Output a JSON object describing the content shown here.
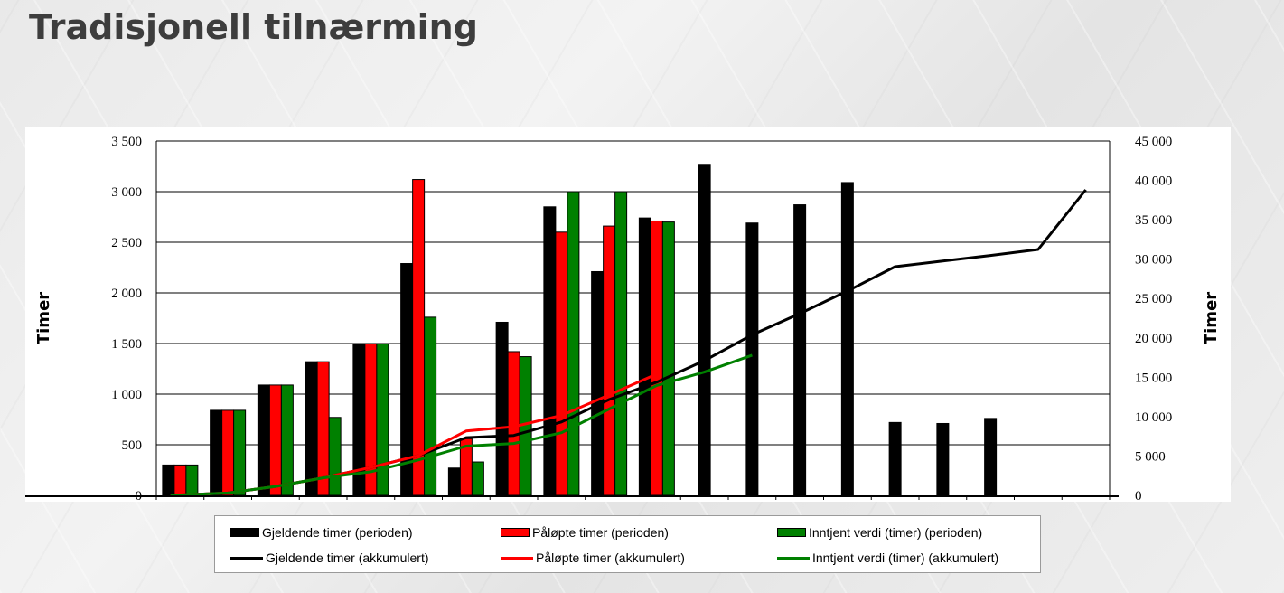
{
  "slide": {
    "title": "Tradisjonell tilnærming"
  },
  "colors": {
    "gjeldende": "#000000",
    "palopte": "#ff0000",
    "inntjent": "#008000",
    "gridline": "#000000"
  },
  "chart_data": {
    "type": "bar",
    "title": "",
    "ylabel": "Timer",
    "y2label": "Timer",
    "ylim": [
      0,
      3500
    ],
    "y2lim": [
      0,
      45000
    ],
    "y_ticks": [
      0,
      500,
      1000,
      1500,
      2000,
      2500,
      3000,
      3500
    ],
    "y_tick_labels": [
      "0",
      "500",
      "1 000",
      "1 500",
      "2 000",
      "2 500",
      "3 000",
      "3 500"
    ],
    "y2_ticks": [
      0,
      5000,
      10000,
      15000,
      20000,
      25000,
      30000,
      35000,
      40000,
      45000
    ],
    "y2_tick_labels": [
      "0",
      "5 000",
      "10 000",
      "15 000",
      "20 000",
      "25 000",
      "30 000",
      "35 000",
      "40 000",
      "45 000"
    ],
    "grid": true,
    "legend_position": "bottom",
    "period_count": 20,
    "series": [
      {
        "name": "Gjeldende timer (perioden)",
        "kind": "bar",
        "axis": "left",
        "color": "#000000",
        "values": [
          300,
          840,
          1090,
          1320,
          1500,
          2290,
          270,
          1710,
          2850,
          2210,
          2740,
          3270,
          2690,
          2870,
          3090,
          720,
          710,
          760,
          null,
          null
        ]
      },
      {
        "name": "Påløpte timer (perioden)",
        "kind": "bar",
        "axis": "left",
        "color": "#ff0000",
        "values": [
          300,
          840,
          1090,
          1320,
          1500,
          3120,
          560,
          1420,
          2600,
          2660,
          2710,
          null,
          null,
          null,
          null,
          null,
          null,
          null,
          null,
          null
        ]
      },
      {
        "name": "Inntjent verdi (timer) (perioden)",
        "kind": "bar",
        "axis": "left",
        "color": "#008000",
        "values": [
          300,
          840,
          1090,
          770,
          1500,
          1760,
          330,
          1370,
          3000,
          3000,
          2700,
          null,
          null,
          null,
          null,
          null,
          null,
          null,
          null,
          null
        ]
      },
      {
        "name": "Gjeldende timer (akkumulert)",
        "kind": "line",
        "axis": "right",
        "color": "#000000",
        "values": [
          0,
          300,
          1140,
          2230,
          3550,
          5050,
          7340,
          7610,
          9320,
          12170,
          14380,
          17120,
          20390,
          23080,
          25950,
          29040,
          29760,
          30470,
          31230,
          38800
        ]
      },
      {
        "name": "Påløpte timer (akkumulert)",
        "kind": "line",
        "axis": "right",
        "color": "#ff0000",
        "values": [
          0,
          300,
          1140,
          2230,
          3550,
          5050,
          8170,
          8730,
          10150,
          12750,
          15410,
          null,
          null,
          null,
          null,
          null,
          null,
          null,
          null,
          null
        ]
      },
      {
        "name": "Inntjent verdi (timer) (akkumulert)",
        "kind": "line",
        "axis": "right",
        "color": "#008000",
        "values": [
          0,
          300,
          1140,
          2230,
          3000,
          4500,
          6260,
          6590,
          7960,
          10960,
          13960,
          15660,
          17800,
          null,
          null,
          null,
          null,
          null,
          null,
          null
        ]
      }
    ]
  },
  "legend": {
    "items": [
      {
        "label": "Gjeldende timer (perioden)",
        "type": "bar",
        "color": "#000000"
      },
      {
        "label": "Påløpte timer (perioden)",
        "type": "bar",
        "color": "#ff0000"
      },
      {
        "label": "Inntjent verdi (timer) (perioden)",
        "type": "bar",
        "color": "#008000"
      },
      {
        "label": "Gjeldende timer (akkumulert)",
        "type": "line",
        "color": "#000000"
      },
      {
        "label": "Påløpte timer (akkumulert)",
        "type": "line",
        "color": "#ff0000"
      },
      {
        "label": "Inntjent verdi (timer) (akkumulert)",
        "type": "line",
        "color": "#008000"
      }
    ]
  }
}
